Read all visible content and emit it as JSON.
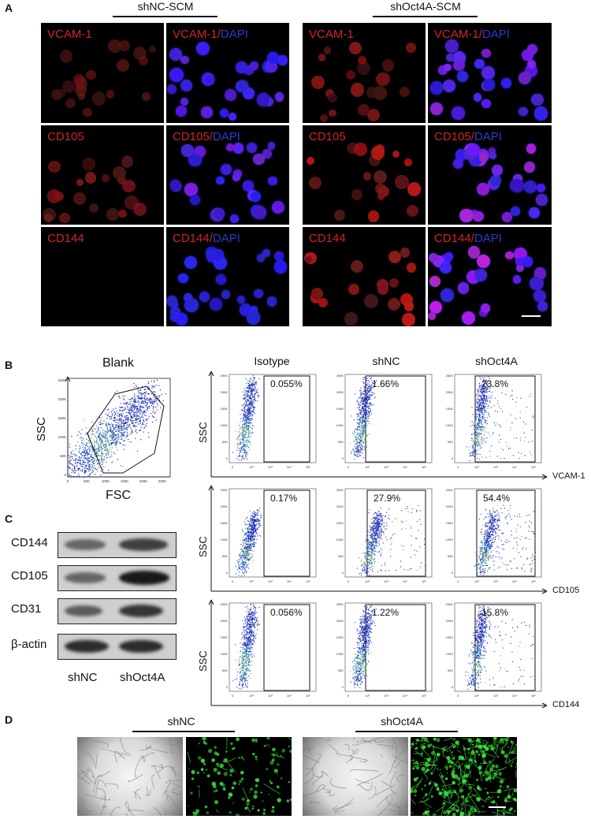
{
  "panel_a": {
    "label": "A",
    "groups": [
      {
        "title": "shNC-SCM"
      },
      {
        "title": "shOct4A-SCM"
      }
    ],
    "rows": [
      {
        "marker": "VCAM-1",
        "sep": "/",
        "dapi": "DAPI"
      },
      {
        "marker": "CD105",
        "sep": "/",
        "dapi": "DAPI"
      },
      {
        "marker": "CD144",
        "sep": "/",
        "dapi": "DAPI"
      }
    ]
  },
  "panel_b": {
    "label": "B",
    "blank": {
      "title": "Blank",
      "xlabel": "FSC",
      "ylabel": "SSC"
    },
    "columns": [
      "Isotype",
      "shNC",
      "shOct4A"
    ],
    "ylabel": "SSC",
    "rows": [
      {
        "marker": "VCAM-1",
        "values": [
          "0.055%",
          "1.66%",
          "23.8%"
        ]
      },
      {
        "marker": "CD105",
        "values": [
          "0.17%",
          "27.9%",
          "54.4%"
        ]
      },
      {
        "marker": "CD144",
        "values": [
          "0.056%",
          "1.22%",
          "15.8%"
        ]
      }
    ],
    "yticks": [
      "250K",
      "200K",
      "150K",
      "100K",
      "50K",
      "0"
    ],
    "xticks": [
      "0",
      "10²",
      "10³",
      "10⁴",
      "10⁵"
    ],
    "blank_xticks": [
      "0",
      "50K",
      "100K",
      "150K",
      "200K",
      "250K"
    ]
  },
  "panel_c": {
    "label": "C",
    "bands": [
      "CD144",
      "CD105",
      "CD31",
      "β-actin"
    ],
    "lanes": [
      "shNC",
      "shOct4A"
    ]
  },
  "panel_d": {
    "label": "D",
    "groups": [
      {
        "title": "shNC"
      },
      {
        "title": "shOct4A"
      }
    ]
  },
  "colors": {
    "red_text": "#d2232a",
    "blue_text": "#2b39d8",
    "gfp": "#39e03a"
  }
}
